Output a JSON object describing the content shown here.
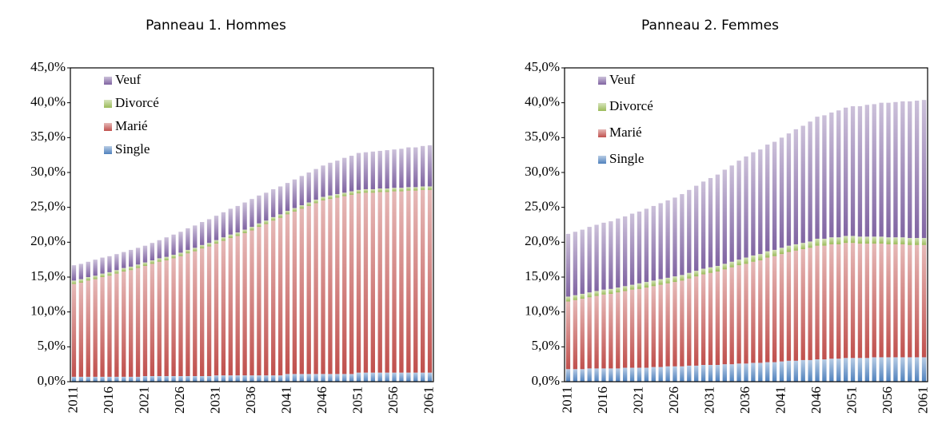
{
  "chart_data": [
    {
      "type": "stacked-bar",
      "title": "Panneau 1. Hommes",
      "categories": [
        "2011",
        null,
        null,
        null,
        null,
        "2016",
        null,
        null,
        null,
        null,
        "2021",
        null,
        null,
        null,
        null,
        "2026",
        null,
        null,
        null,
        null,
        "2031",
        null,
        null,
        null,
        null,
        "2036",
        null,
        null,
        null,
        null,
        "2041",
        null,
        null,
        null,
        null,
        "2046",
        null,
        null,
        null,
        null,
        "2051",
        null,
        null,
        null,
        null,
        "2056",
        null,
        null,
        null,
        null,
        "2061"
      ],
      "ylim": [
        0,
        45
      ],
      "yticks": [
        {
          "value": 0,
          "label": "0,0%"
        },
        {
          "value": 5,
          "label": "5,0%"
        },
        {
          "value": 10,
          "label": "10,0%"
        },
        {
          "value": 15,
          "label": "15,0%"
        },
        {
          "value": 20,
          "label": "20,0%"
        },
        {
          "value": 25,
          "label": "25,0%"
        },
        {
          "value": 30,
          "label": "30,0%"
        },
        {
          "value": 35,
          "label": "35,0%"
        },
        {
          "value": 40,
          "label": "40,0%"
        },
        {
          "value": 45,
          "label": "45,0%"
        }
      ],
      "legend": "upper left",
      "series": [
        {
          "name": "Single",
          "color": "#4f81bd",
          "values": [
            0.7,
            0.7,
            0.7,
            0.7,
            0.7,
            0.7,
            0.7,
            0.7,
            0.7,
            0.7,
            0.8,
            0.8,
            0.8,
            0.8,
            0.8,
            0.8,
            0.8,
            0.8,
            0.8,
            0.8,
            0.9,
            0.9,
            0.9,
            0.9,
            0.9,
            0.9,
            0.9,
            0.9,
            0.9,
            0.9,
            1.1,
            1.1,
            1.1,
            1.1,
            1.1,
            1.1,
            1.1,
            1.1,
            1.1,
            1.1,
            1.3,
            1.3,
            1.3,
            1.3,
            1.3,
            1.3,
            1.3,
            1.3,
            1.3,
            1.3,
            1.3
          ]
        },
        {
          "name": "Marié",
          "color": "#c0504d",
          "values": [
            13.3,
            13.5,
            13.8,
            14.0,
            14.3,
            14.5,
            14.8,
            15.1,
            15.3,
            15.6,
            15.8,
            16.1,
            16.4,
            16.6,
            16.9,
            17.2,
            17.6,
            17.9,
            18.3,
            18.6,
            18.9,
            19.3,
            19.7,
            20.0,
            20.4,
            20.8,
            21.3,
            21.7,
            22.2,
            22.6,
            22.9,
            23.3,
            23.7,
            24.1,
            24.5,
            24.9,
            25.1,
            25.3,
            25.5,
            25.7,
            25.7,
            25.8,
            25.8,
            25.9,
            25.9,
            26.0,
            26.0,
            26.1,
            26.1,
            26.2,
            26.2
          ]
        },
        {
          "name": "Divorcé",
          "color": "#9bbb59",
          "values": [
            0.5,
            0.5,
            0.5,
            0.5,
            0.5,
            0.5,
            0.5,
            0.5,
            0.5,
            0.5,
            0.5,
            0.5,
            0.5,
            0.5,
            0.5,
            0.5,
            0.5,
            0.5,
            0.5,
            0.5,
            0.5,
            0.5,
            0.5,
            0.5,
            0.5,
            0.5,
            0.5,
            0.5,
            0.5,
            0.5,
            0.5,
            0.5,
            0.5,
            0.5,
            0.5,
            0.5,
            0.5,
            0.5,
            0.5,
            0.5,
            0.5,
            0.5,
            0.5,
            0.5,
            0.5,
            0.5,
            0.5,
            0.5,
            0.5,
            0.5,
            0.5
          ]
        },
        {
          "name": "Veuf",
          "color": "#8064a2",
          "values": [
            2.2,
            2.2,
            2.2,
            2.3,
            2.3,
            2.3,
            2.3,
            2.3,
            2.4,
            2.4,
            2.4,
            2.5,
            2.6,
            2.8,
            2.9,
            3.0,
            3.1,
            3.2,
            3.3,
            3.4,
            3.5,
            3.6,
            3.7,
            3.8,
            3.9,
            4.0,
            4.0,
            4.0,
            4.0,
            4.0,
            4.0,
            4.1,
            4.2,
            4.3,
            4.4,
            4.5,
            4.7,
            4.8,
            5.0,
            5.1,
            5.3,
            5.3,
            5.4,
            5.4,
            5.5,
            5.5,
            5.6,
            5.7,
            5.7,
            5.8,
            5.9
          ]
        }
      ]
    },
    {
      "type": "stacked-bar",
      "title": "Panneau 2. Femmes",
      "categories": [
        "2011",
        null,
        null,
        null,
        null,
        "2016",
        null,
        null,
        null,
        null,
        "2021",
        null,
        null,
        null,
        null,
        "2026",
        null,
        null,
        null,
        null,
        "2031",
        null,
        null,
        null,
        null,
        "2036",
        null,
        null,
        null,
        null,
        "2041",
        null,
        null,
        null,
        null,
        "2046",
        null,
        null,
        null,
        null,
        "2051",
        null,
        null,
        null,
        null,
        "2056",
        null,
        null,
        null,
        null,
        "2061"
      ],
      "ylim": [
        0,
        45
      ],
      "yticks": [
        {
          "value": 0,
          "label": "0,0%"
        },
        {
          "value": 5,
          "label": "5,0%"
        },
        {
          "value": 10,
          "label": "10,0%"
        },
        {
          "value": 15,
          "label": "15,0%"
        },
        {
          "value": 20,
          "label": "20,0%"
        },
        {
          "value": 25,
          "label": "25,0%"
        },
        {
          "value": 30,
          "label": "30,0%"
        },
        {
          "value": 35,
          "label": "35,0%"
        },
        {
          "value": 40,
          "label": "40,0%"
        },
        {
          "value": 45,
          "label": "45,0%"
        }
      ],
      "legend": "upper left",
      "series": [
        {
          "name": "Single",
          "color": "#4f81bd",
          "values": [
            1.8,
            1.8,
            1.8,
            1.9,
            1.9,
            1.9,
            1.9,
            1.9,
            2.0,
            2.0,
            2.0,
            2.0,
            2.1,
            2.1,
            2.2,
            2.2,
            2.2,
            2.3,
            2.3,
            2.4,
            2.4,
            2.4,
            2.5,
            2.5,
            2.6,
            2.6,
            2.7,
            2.7,
            2.8,
            2.8,
            2.9,
            3.0,
            3.0,
            3.1,
            3.1,
            3.2,
            3.2,
            3.3,
            3.3,
            3.4,
            3.4,
            3.4,
            3.4,
            3.5,
            3.5,
            3.5,
            3.5,
            3.5,
            3.5,
            3.5,
            3.5
          ]
        },
        {
          "name": "Marié",
          "color": "#c0504d",
          "values": [
            9.7,
            9.9,
            10.1,
            10.2,
            10.4,
            10.6,
            10.7,
            10.9,
            11.0,
            11.2,
            11.3,
            11.5,
            11.6,
            11.8,
            11.9,
            12.1,
            12.3,
            12.5,
            12.8,
            13.0,
            13.2,
            13.4,
            13.6,
            13.9,
            14.1,
            14.3,
            14.5,
            14.7,
            15.0,
            15.2,
            15.4,
            15.6,
            15.8,
            15.9,
            16.1,
            16.3,
            16.3,
            16.4,
            16.4,
            16.5,
            16.5,
            16.4,
            16.4,
            16.3,
            16.3,
            16.2,
            16.2,
            16.2,
            16.1,
            16.1,
            16.1
          ]
        },
        {
          "name": "Divorcé",
          "color": "#9bbb59",
          "values": [
            0.7,
            0.7,
            0.7,
            0.7,
            0.7,
            0.7,
            0.7,
            0.7,
            0.7,
            0.7,
            0.8,
            0.8,
            0.8,
            0.8,
            0.8,
            0.8,
            0.8,
            0.8,
            0.8,
            0.8,
            0.8,
            0.8,
            0.8,
            0.8,
            0.8,
            0.9,
            0.9,
            0.9,
            0.9,
            0.9,
            0.9,
            0.9,
            0.9,
            0.9,
            0.9,
            1.0,
            1.0,
            1.0,
            1.0,
            1.0,
            1.0,
            1.0,
            1.0,
            1.0,
            1.0,
            1.0,
            1.0,
            1.0,
            1.0,
            1.0,
            1.0
          ]
        },
        {
          "name": "Veuf",
          "color": "#8064a2",
          "values": [
            9.0,
            9.1,
            9.2,
            9.4,
            9.5,
            9.6,
            9.7,
            9.9,
            10.0,
            10.2,
            10.3,
            10.5,
            10.7,
            10.9,
            11.1,
            11.3,
            11.6,
            11.9,
            12.2,
            12.5,
            12.8,
            13.1,
            13.5,
            13.8,
            14.2,
            14.5,
            14.8,
            15.0,
            15.3,
            15.5,
            15.8,
            16.1,
            16.5,
            16.8,
            17.2,
            17.5,
            17.7,
            17.9,
            18.2,
            18.4,
            18.6,
            18.7,
            18.9,
            19.0,
            19.2,
            19.3,
            19.4,
            19.5,
            19.6,
            19.7,
            19.8
          ]
        }
      ]
    }
  ]
}
